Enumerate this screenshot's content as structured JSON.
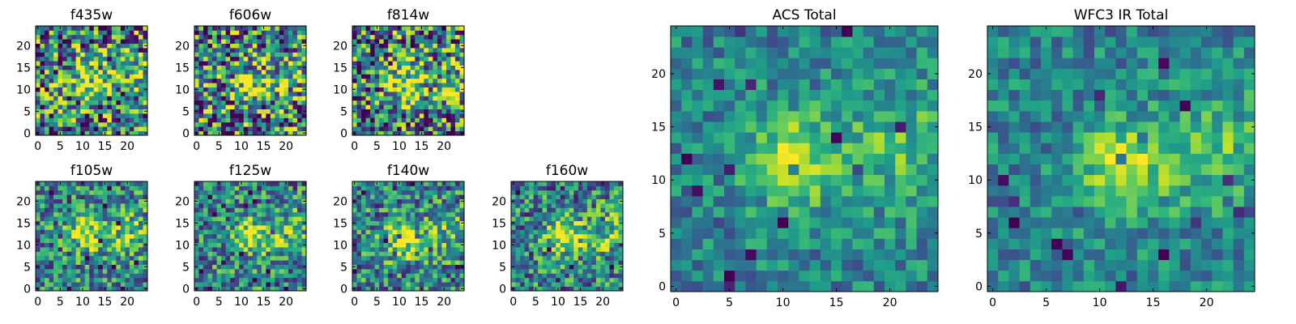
{
  "chart_data": [
    {
      "type": "heatmap",
      "title": "f435w",
      "grid_size": 25,
      "xticks": [
        0,
        5,
        10,
        15,
        20
      ],
      "yticks": [
        0,
        5,
        10,
        15,
        20
      ],
      "xlim": [
        -0.5,
        24.5
      ],
      "ylim": [
        -0.5,
        24.5
      ],
      "colormap": "viridis",
      "noise": "high",
      "peak": [
        11,
        12
      ],
      "seed": 11
    },
    {
      "type": "heatmap",
      "title": "f606w",
      "grid_size": 25,
      "xticks": [
        0,
        5,
        10,
        15,
        20
      ],
      "yticks": [
        0,
        5,
        10,
        15,
        20
      ],
      "xlim": [
        -0.5,
        24.5
      ],
      "ylim": [
        -0.5,
        24.5
      ],
      "colormap": "viridis",
      "noise": "high",
      "peak": [
        12,
        11
      ],
      "seed": 22
    },
    {
      "type": "heatmap",
      "title": "f814w",
      "grid_size": 25,
      "xticks": [
        0,
        5,
        10,
        15,
        20
      ],
      "yticks": [
        0,
        5,
        10,
        15,
        20
      ],
      "xlim": [
        -0.5,
        24.5
      ],
      "ylim": [
        -0.5,
        24.5
      ],
      "colormap": "viridis",
      "noise": "high",
      "peak": [
        11,
        12
      ],
      "seed": 33
    },
    {
      "type": "heatmap",
      "title": "f105w",
      "grid_size": 25,
      "xticks": [
        0,
        5,
        10,
        15,
        20
      ],
      "yticks": [
        0,
        5,
        10,
        15,
        20
      ],
      "xlim": [
        -0.5,
        24.5
      ],
      "ylim": [
        -0.5,
        24.5
      ],
      "colormap": "viridis",
      "noise": "medium",
      "peak": [
        11,
        13
      ],
      "seed": 44
    },
    {
      "type": "heatmap",
      "title": "f125w",
      "grid_size": 25,
      "xticks": [
        0,
        5,
        10,
        15,
        20
      ],
      "yticks": [
        0,
        5,
        10,
        15,
        20
      ],
      "xlim": [
        -0.5,
        24.5
      ],
      "ylim": [
        -0.5,
        24.5
      ],
      "colormap": "viridis",
      "noise": "medium",
      "peak": [
        12,
        12
      ],
      "seed": 55
    },
    {
      "type": "heatmap",
      "title": "f140w",
      "grid_size": 25,
      "xticks": [
        0,
        5,
        10,
        15,
        20
      ],
      "yticks": [
        0,
        5,
        10,
        15,
        20
      ],
      "xlim": [
        -0.5,
        24.5
      ],
      "ylim": [
        -0.5,
        24.5
      ],
      "colormap": "viridis",
      "noise": "medium",
      "peak": [
        11,
        11
      ],
      "seed": 66
    },
    {
      "type": "heatmap",
      "title": "f160w",
      "grid_size": 25,
      "xticks": [
        0,
        5,
        10,
        15,
        20
      ],
      "yticks": [
        0,
        5,
        10,
        15,
        20
      ],
      "xlim": [
        -0.5,
        24.5
      ],
      "ylim": [
        -0.5,
        24.5
      ],
      "colormap": "viridis",
      "noise": "medium",
      "peak": [
        11,
        12
      ],
      "seed": 77
    },
    {
      "type": "heatmap",
      "title": "ACS Total",
      "grid_size": 25,
      "xticks": [
        0,
        5,
        10,
        15,
        20
      ],
      "yticks": [
        0,
        5,
        10,
        15,
        20
      ],
      "xlim": [
        -0.5,
        24.5
      ],
      "ylim": [
        -0.5,
        24.5
      ],
      "colormap": "viridis",
      "noise": "low",
      "peak": [
        11,
        12
      ],
      "seed": 88
    },
    {
      "type": "heatmap",
      "title": "WFC3 IR Total",
      "grid_size": 25,
      "xticks": [
        0,
        5,
        10,
        15,
        20
      ],
      "yticks": [
        0,
        5,
        10,
        15,
        20
      ],
      "xlim": [
        -0.5,
        24.5
      ],
      "ylim": [
        -0.5,
        24.5
      ],
      "colormap": "viridis",
      "noise": "low",
      "peak": [
        12,
        11
      ],
      "seed": 99
    }
  ]
}
